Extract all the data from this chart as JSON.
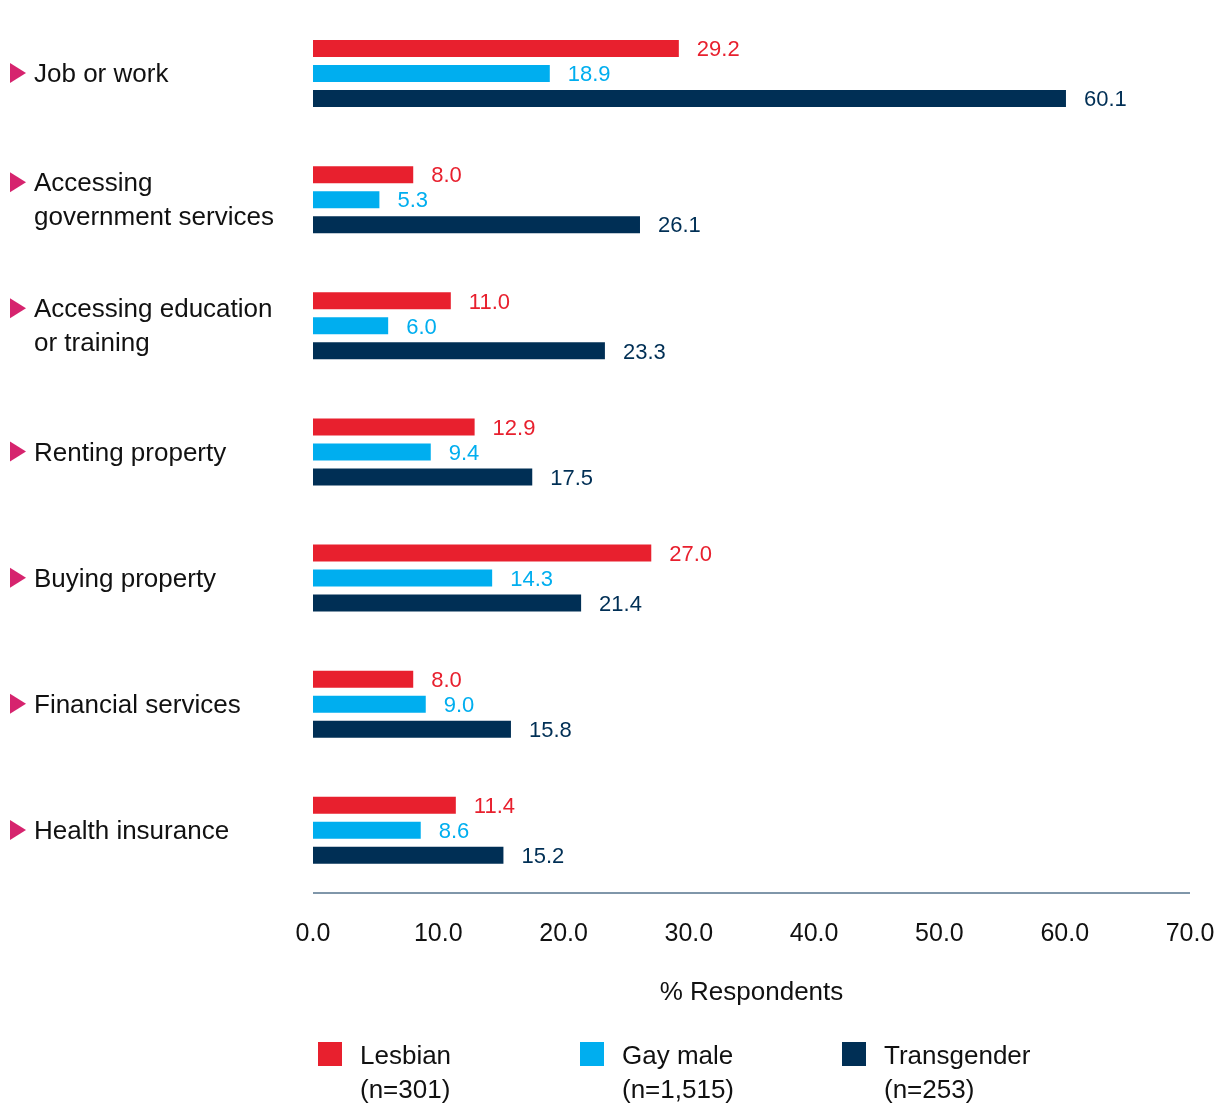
{
  "chart_data": {
    "type": "bar",
    "orientation": "horizontal",
    "xlabel": "% Respondents",
    "categories": [
      "Job or work",
      "Accessing government services",
      "Accessing education or training",
      "Renting property",
      "Buying property",
      "Financial services",
      "Health insurance"
    ],
    "series": [
      {
        "name": "Lesbian (n=301)",
        "color": "#e8202e",
        "values": [
          29.2,
          8.0,
          11.0,
          12.9,
          27.0,
          8.0,
          11.4
        ],
        "value_labels": [
          "29.2",
          "8.0",
          "11.0",
          "12.9",
          "27.0",
          "8.0",
          "11.4"
        ]
      },
      {
        "name": "Gay male (n=1,515)",
        "color": "#00aeef",
        "values": [
          18.9,
          5.3,
          6.0,
          9.4,
          14.3,
          9.0,
          8.6
        ],
        "value_labels": [
          "18.9",
          "5.3",
          "6.0",
          "9.4",
          "14.3",
          "9.0",
          "8.6"
        ]
      },
      {
        "name": "Transgender (n=253)",
        "color": "#002f55",
        "values": [
          60.1,
          26.1,
          23.3,
          17.5,
          21.4,
          15.8,
          15.2
        ],
        "value_labels": [
          "60.1",
          "26.1",
          "23.3",
          "17.5",
          "21.4",
          "15.8",
          "15.2"
        ]
      }
    ],
    "xlim": [
      0,
      70
    ],
    "xticks": [
      {
        "value": 0,
        "label": "0.0"
      },
      {
        "value": 10,
        "label": "10.0"
      },
      {
        "value": 20,
        "label": "20.0"
      },
      {
        "value": 30,
        "label": "30.0"
      },
      {
        "value": 40,
        "label": "40.0"
      },
      {
        "value": 50,
        "label": "50.0"
      },
      {
        "value": 60,
        "label": "60.0"
      },
      {
        "value": 70,
        "label": "70.0"
      }
    ],
    "grid": false,
    "legend": "bottom"
  }
}
